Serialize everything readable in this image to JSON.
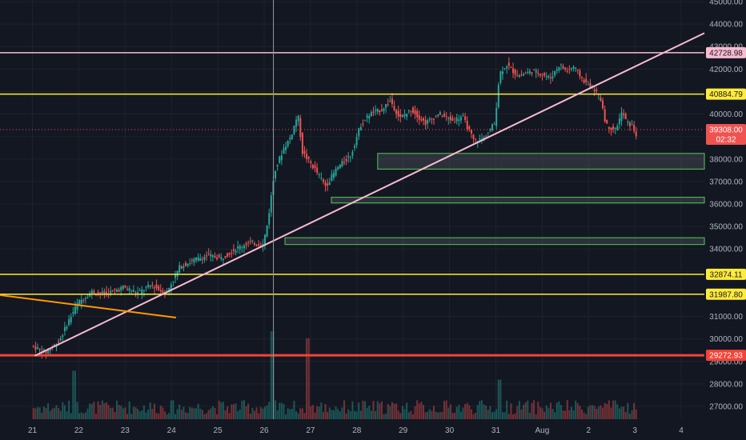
{
  "chart_data": {
    "type": "candlestick",
    "y_ticks": [
      27000,
      28000,
      29000,
      30000,
      31000,
      32000,
      33000,
      34000,
      35000,
      36000,
      37000,
      38000,
      39000,
      40000,
      41000,
      42000,
      43000,
      44000,
      45000
    ],
    "y_tick_labels": [
      "27000.00",
      "28000.00",
      "29000.00",
      "30000.00",
      "31000.00",
      "32000.00",
      "33000.00",
      "34000.00",
      "35000.00",
      "36000.00",
      "37000.00",
      "38000.00",
      "39000.00",
      "40000.00",
      "41000.00",
      "42000.00",
      "43000.00",
      "44000.00",
      "45000.00"
    ],
    "x_ticks": [
      "21",
      "22",
      "23",
      "24",
      "25",
      "26",
      "27",
      "28",
      "29",
      "30",
      "31",
      "Aug",
      "2",
      "3",
      "4"
    ],
    "price_series": [
      [
        21.0,
        29700
      ],
      [
        21.3,
        29400
      ],
      [
        21.6,
        29900
      ],
      [
        21.8,
        30800
      ],
      [
        22.0,
        31600
      ],
      [
        22.3,
        32100
      ],
      [
        22.6,
        32000
      ],
      [
        23.0,
        32300
      ],
      [
        23.3,
        32050
      ],
      [
        23.6,
        32400
      ],
      [
        23.9,
        32000
      ],
      [
        24.2,
        33200
      ],
      [
        24.5,
        33500
      ],
      [
        24.8,
        33700
      ],
      [
        25.1,
        33600
      ],
      [
        25.4,
        34000
      ],
      [
        25.7,
        34300
      ],
      [
        26.0,
        34200
      ],
      [
        26.1,
        35200
      ],
      [
        26.25,
        37500
      ],
      [
        26.45,
        38500
      ],
      [
        26.6,
        39000
      ],
      [
        26.75,
        40000
      ],
      [
        26.85,
        38300
      ],
      [
        27.1,
        37600
      ],
      [
        27.35,
        36800
      ],
      [
        27.6,
        37600
      ],
      [
        27.9,
        38200
      ],
      [
        28.1,
        39500
      ],
      [
        28.3,
        40000
      ],
      [
        28.55,
        40200
      ],
      [
        28.75,
        40600
      ],
      [
        28.95,
        39800
      ],
      [
        29.2,
        40200
      ],
      [
        29.5,
        39600
      ],
      [
        29.8,
        40000
      ],
      [
        30.1,
        39700
      ],
      [
        30.3,
        39900
      ],
      [
        30.55,
        38800
      ],
      [
        30.75,
        38900
      ],
      [
        31.0,
        39600
      ],
      [
        31.1,
        41800
      ],
      [
        31.25,
        42200
      ],
      [
        31.5,
        41700
      ],
      [
        31.8,
        41900
      ],
      [
        32.0,
        41800
      ],
      [
        32.2,
        41600
      ],
      [
        32.4,
        42200
      ],
      [
        32.55,
        41900
      ],
      [
        32.7,
        42100
      ],
      [
        32.95,
        41400
      ],
      [
        33.15,
        41100
      ],
      [
        33.3,
        40600
      ],
      [
        33.4,
        39500
      ],
      [
        33.6,
        39300
      ],
      [
        33.75,
        40100
      ],
      [
        33.85,
        39600
      ],
      [
        33.95,
        39500
      ],
      [
        34.05,
        39100
      ]
    ],
    "volume_spikes": [
      {
        "x": 21.9,
        "v": 0.55
      },
      {
        "x": 26.15,
        "v": 1.0
      },
      {
        "x": 26.9,
        "v": 0.92
      },
      {
        "x": 31.05,
        "v": 0.45
      }
    ],
    "horizontal_levels": [
      {
        "price": 42728.98,
        "label": "42728.98",
        "color": "#f8bbd0"
      },
      {
        "price": 40884.79,
        "label": "40884.79",
        "color": "#ffeb3b"
      },
      {
        "price": 32874.11,
        "label": "32874.11",
        "color": "#ffeb3b"
      },
      {
        "price": 31987.8,
        "label": "31987.80",
        "color": "#ffeb3b"
      },
      {
        "price": 29272.93,
        "label": "29272.93",
        "color": "#f44336"
      }
    ],
    "trend_lines": [
      {
        "from": [
          21.05,
          29250
        ],
        "to": [
          35.5,
          43600
        ],
        "color": "#f8bbd0"
      },
      {
        "from": [
          20.3,
          31950
        ],
        "to": [
          24.1,
          30950
        ],
        "color": "#ff9800"
      }
    ],
    "zones": [
      {
        "x_from": 28.45,
        "price_top": 38250,
        "price_bottom": 37550
      },
      {
        "x_from": 27.45,
        "price_top": 36300,
        "price_bottom": 36050
      },
      {
        "x_from": 26.45,
        "price_top": 34500,
        "price_bottom": 34200
      }
    ],
    "crosshair_x": 26.2,
    "last_price": {
      "label": "39308.00",
      "countdown": "02:32",
      "price": 39308
    }
  },
  "colors": {
    "background": "#131722",
    "up": "#26a69a",
    "down": "#ef5350",
    "grid": "#1e222d",
    "axis_text": "#b2b5be",
    "zone_border": "#4caf50",
    "zone_fill": "rgba(120,123,134,0.25)"
  }
}
